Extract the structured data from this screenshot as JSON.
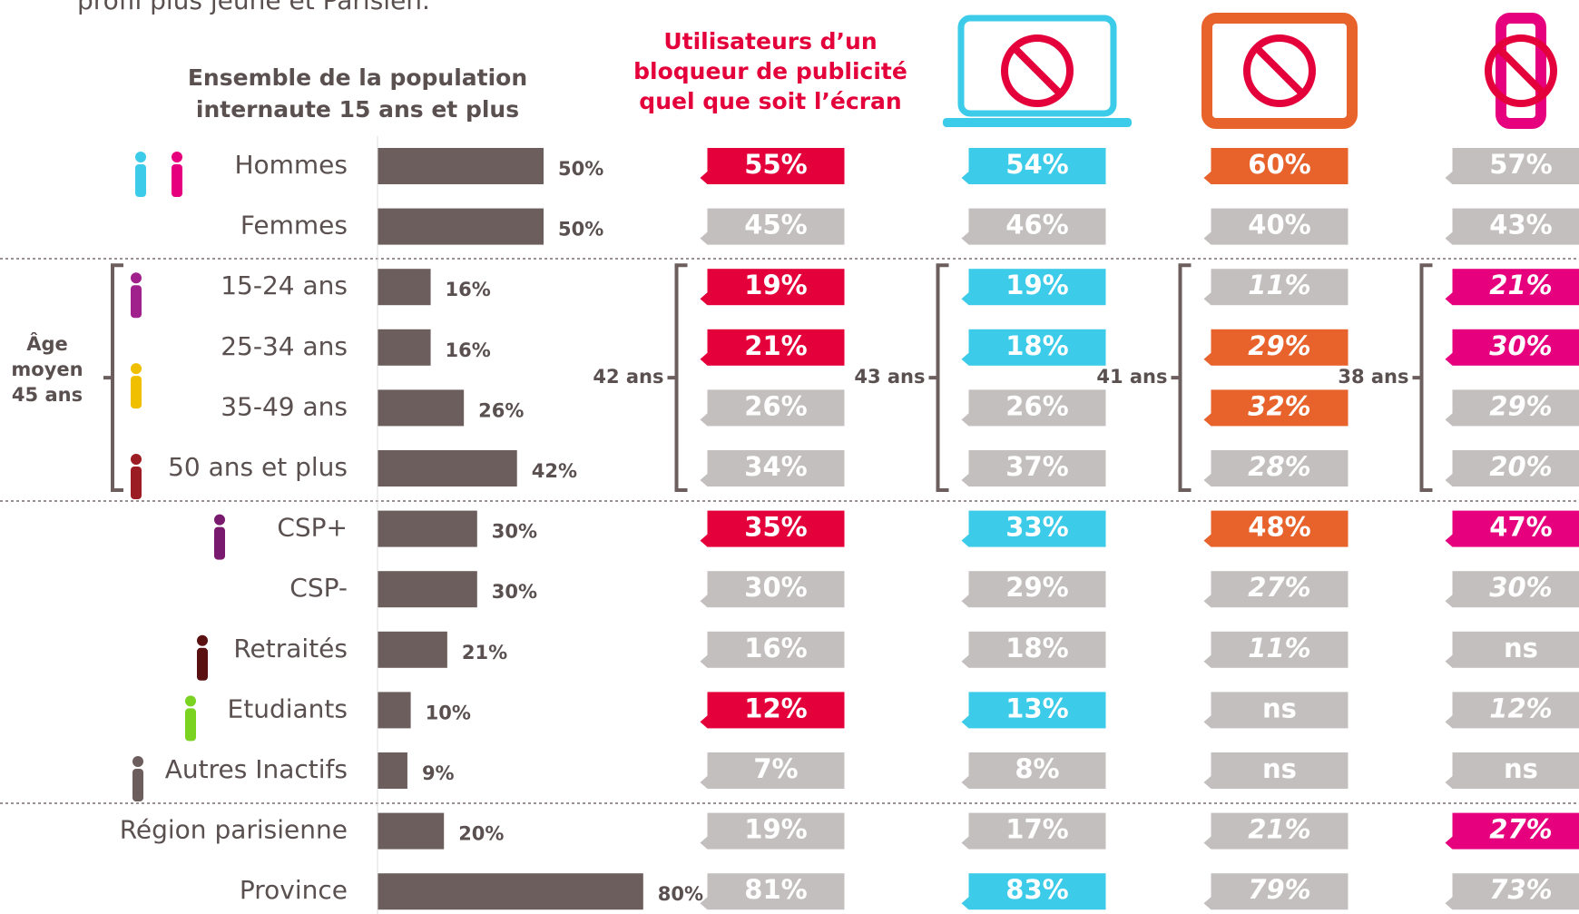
{
  "intro": "profil plus jeune et Parisien.",
  "chart_data": {
    "type": "bar",
    "title_lines": [
      "Ensemble de la population",
      "internaute 15 ans et plus"
    ],
    "categories": [
      "Hommes",
      "Femmes",
      "15-24 ans",
      "25-34 ans",
      "35-49 ans",
      "50 ans et plus",
      "CSP+",
      "CSP-",
      "Retraités",
      "Etudiants",
      "Autres Inactifs",
      "Région parisienne",
      "Province"
    ],
    "values": [
      50,
      50,
      16,
      16,
      26,
      42,
      30,
      30,
      21,
      10,
      9,
      20,
      80
    ],
    "value_labels": [
      "50%",
      "50%",
      "16%",
      "16%",
      "26%",
      "42%",
      "30%",
      "30%",
      "21%",
      "10%",
      "9%",
      "20%",
      "80%"
    ],
    "color": "#6b5e5c",
    "mean_age_lines": [
      "Âge",
      "moyen",
      "45 ans"
    ]
  },
  "columns": [
    {
      "header_lines": [
        "Utilisateurs d’un",
        "bloqueur de publicité",
        "quel que soit l’écran"
      ],
      "color": "#e4003a",
      "mean_age": "42 ans",
      "cells": [
        "55%",
        "45%",
        "19%",
        "21%",
        "26%",
        "34%",
        "35%",
        "30%",
        "16%",
        "12%",
        "7%",
        "19%",
        "81%"
      ],
      "highlighted": [
        0,
        2,
        3,
        6,
        9
      ],
      "italic": []
    },
    {
      "device": "laptop",
      "color": "#3ccbe8",
      "mean_age": "43 ans",
      "cells": [
        "54%",
        "46%",
        "19%",
        "18%",
        "26%",
        "37%",
        "33%",
        "29%",
        "18%",
        "13%",
        "8%",
        "17%",
        "83%"
      ],
      "highlighted": [
        0,
        2,
        3,
        6,
        9,
        12
      ],
      "italic": []
    },
    {
      "device": "tablet",
      "color": "#e8622c",
      "mean_age": "41 ans",
      "cells": [
        "60%",
        "40%",
        "11%",
        "29%",
        "32%",
        "28%",
        "48%",
        "27%",
        "11%",
        "ns",
        "ns",
        "21%",
        "79%"
      ],
      "highlighted": [
        0,
        3,
        4,
        6
      ],
      "italic": [
        2,
        3,
        4,
        5,
        7,
        8,
        11,
        12
      ]
    },
    {
      "device": "mobile",
      "color": "#e6007e",
      "mean_age": "38 ans",
      "cells": [
        "57%",
        "43%",
        "21%",
        "30%",
        "29%",
        "20%",
        "47%",
        "30%",
        "ns",
        "12%",
        "ns",
        "27%",
        "73%"
      ],
      "highlighted": [
        2,
        3,
        6,
        11
      ],
      "italic": [
        2,
        3,
        4,
        5,
        7,
        9,
        11,
        12
      ]
    }
  ]
}
